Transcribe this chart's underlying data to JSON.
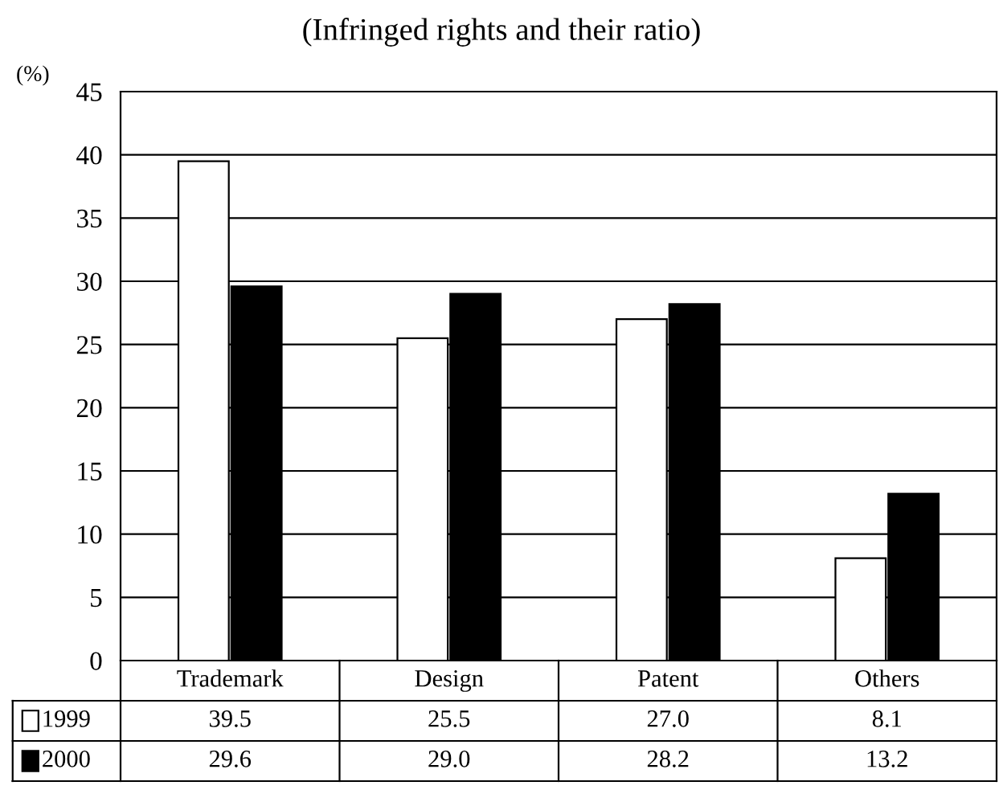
{
  "chart_data": {
    "type": "bar",
    "title": "(Infringed rights and their ratio)",
    "ylabel": "(%)",
    "categories": [
      "Trademark",
      "Design",
      "Patent",
      "Others"
    ],
    "series": [
      {
        "name": "1999",
        "color": "#ffffff",
        "values": [
          39.5,
          25.5,
          27.0,
          8.1
        ],
        "value_labels": [
          "39.5",
          "25.5",
          "27.0",
          "8.1"
        ]
      },
      {
        "name": "2000",
        "color": "#000000",
        "values": [
          29.6,
          29.0,
          28.2,
          13.2
        ],
        "value_labels": [
          "29.6",
          "29.0",
          "28.2",
          "13.2"
        ]
      }
    ],
    "ylim": [
      0,
      45
    ],
    "yticks": [
      0,
      5,
      10,
      15,
      20,
      25,
      30,
      35,
      40,
      45
    ],
    "grid": "y",
    "legend": "bottom"
  }
}
